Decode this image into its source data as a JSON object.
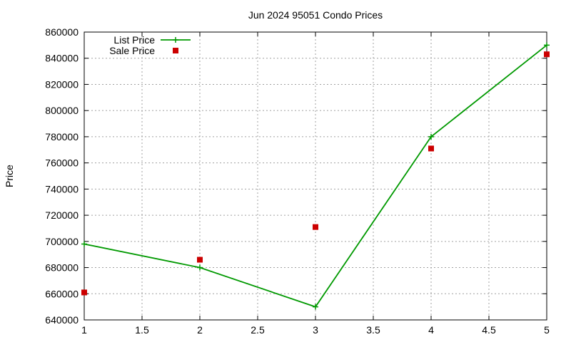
{
  "chart_data": {
    "type": "line",
    "title": "Jun 2024 95051 Condo Prices",
    "xlabel": "",
    "ylabel": "Price",
    "xlim": [
      1,
      5
    ],
    "ylim": [
      640000,
      860000
    ],
    "x_ticks": [
      "1",
      "1.5",
      "2",
      "2.5",
      "3",
      "3.5",
      "4",
      "4.5",
      "5"
    ],
    "y_ticks": [
      "640000",
      "660000",
      "680000",
      "700000",
      "720000",
      "740000",
      "760000",
      "780000",
      "800000",
      "820000",
      "840000",
      "860000"
    ],
    "grid": true,
    "legend_position": "top-left",
    "series": [
      {
        "name": "List Price",
        "style": "line-with-plus-markers",
        "color": "#009900",
        "points": [
          {
            "x": 1,
            "y": 698000
          },
          {
            "x": 2,
            "y": 680000
          },
          {
            "x": 3,
            "y": 650000
          },
          {
            "x": 4,
            "y": 780000
          },
          {
            "x": 5,
            "y": 850000
          }
        ]
      },
      {
        "name": "Sale Price",
        "style": "square-markers",
        "color": "#cc0000",
        "points": [
          {
            "x": 1,
            "y": 661000
          },
          {
            "x": 2,
            "y": 686000
          },
          {
            "x": 3,
            "y": 711000
          },
          {
            "x": 4,
            "y": 771000
          },
          {
            "x": 5,
            "y": 843000
          }
        ]
      }
    ]
  }
}
